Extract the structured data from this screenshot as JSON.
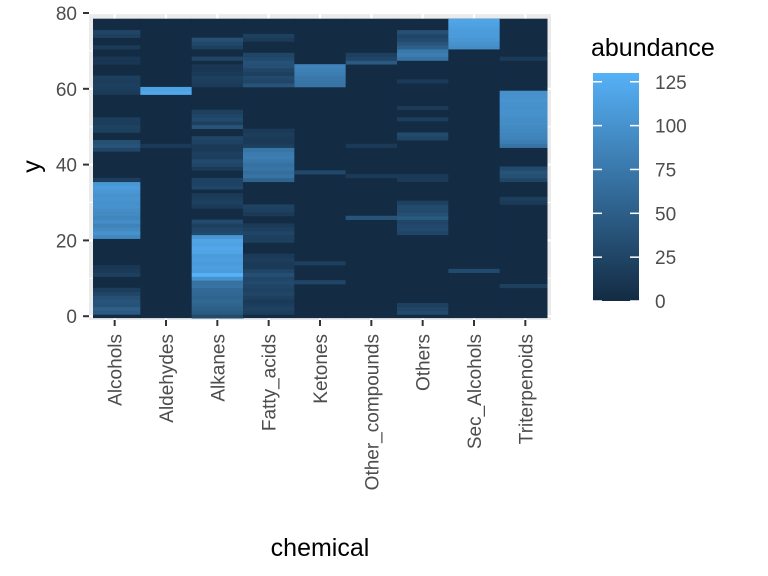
{
  "chart_data": {
    "type": "heatmap",
    "xlabel": "chemical",
    "ylabel": "y",
    "categories": [
      "Alcohols",
      "Aldehydes",
      "Alkanes",
      "Fatty_acids",
      "Ketones",
      "Other_compounds",
      "Others",
      "Sec_Alcohols",
      "Triterpenoids"
    ],
    "y_ticks": [
      0,
      20,
      40,
      60,
      80
    ],
    "ylim": [
      -1,
      80
    ],
    "legend": {
      "title": "abundance",
      "position": "right",
      "ticks": [
        0,
        25,
        50,
        75,
        100,
        125
      ],
      "range": [
        0,
        130
      ],
      "color_low": "#132B43",
      "color_high": "#56B1F7"
    },
    "panel_background": "#EBEBEB",
    "grid": true,
    "cells": {
      "Alcohols": [
        [
          1,
          45
        ],
        [
          2,
          50
        ],
        [
          3,
          38
        ],
        [
          4,
          40
        ],
        [
          5,
          35
        ],
        [
          6,
          25
        ],
        [
          7,
          18
        ],
        [
          11,
          20
        ],
        [
          12,
          15
        ],
        [
          13,
          12
        ],
        [
          21,
          90
        ],
        [
          22,
          100
        ],
        [
          23,
          92
        ],
        [
          24,
          85
        ],
        [
          25,
          95
        ],
        [
          26,
          88
        ],
        [
          27,
          92
        ],
        [
          28,
          95
        ],
        [
          29,
          100
        ],
        [
          30,
          98
        ],
        [
          31,
          102
        ],
        [
          32,
          100
        ],
        [
          33,
          105
        ],
        [
          34,
          110
        ],
        [
          35,
          105
        ],
        [
          36,
          18
        ],
        [
          44,
          25
        ],
        [
          45,
          40
        ],
        [
          46,
          35
        ],
        [
          49,
          20
        ],
        [
          50,
          22
        ],
        [
          51,
          18
        ],
        [
          52,
          18
        ],
        [
          59,
          15
        ],
        [
          60,
          18
        ],
        [
          61,
          20
        ],
        [
          62,
          18
        ],
        [
          63,
          20
        ],
        [
          67,
          12
        ],
        [
          68,
          12
        ],
        [
          71,
          15
        ],
        [
          74,
          20
        ],
        [
          75,
          25
        ]
      ],
      "Aldehydes": [
        [
          45,
          15
        ],
        [
          59,
          120
        ],
        [
          60,
          115
        ]
      ],
      "Alkanes": [
        [
          0,
          30
        ],
        [
          1,
          45
        ],
        [
          2,
          50
        ],
        [
          3,
          55
        ],
        [
          4,
          58
        ],
        [
          5,
          55
        ],
        [
          6,
          58
        ],
        [
          7,
          60
        ],
        [
          8,
          70
        ],
        [
          9,
          68
        ],
        [
          10,
          100
        ],
        [
          11,
          130
        ],
        [
          12,
          110
        ],
        [
          13,
          112
        ],
        [
          14,
          108
        ],
        [
          15,
          112
        ],
        [
          16,
          110
        ],
        [
          17,
          118
        ],
        [
          18,
          120
        ],
        [
          19,
          115
        ],
        [
          20,
          118
        ],
        [
          21,
          105
        ],
        [
          22,
          30
        ],
        [
          23,
          25
        ],
        [
          24,
          20
        ],
        [
          25,
          30
        ],
        [
          29,
          15
        ],
        [
          30,
          20
        ],
        [
          31,
          18
        ],
        [
          32,
          15
        ],
        [
          34,
          25
        ],
        [
          35,
          22
        ],
        [
          36,
          22
        ],
        [
          39,
          15
        ],
        [
          40,
          25
        ],
        [
          41,
          30
        ],
        [
          42,
          18
        ],
        [
          43,
          20
        ],
        [
          44,
          15
        ],
        [
          45,
          15
        ],
        [
          46,
          22
        ],
        [
          47,
          25
        ],
        [
          50,
          40
        ],
        [
          51,
          20
        ],
        [
          52,
          30
        ],
        [
          53,
          25
        ],
        [
          54,
          20
        ],
        [
          61,
          15
        ],
        [
          62,
          18
        ],
        [
          63,
          20
        ],
        [
          64,
          15
        ],
        [
          65,
          12
        ],
        [
          66,
          12
        ],
        [
          68,
          25
        ],
        [
          71,
          20
        ],
        [
          72,
          28
        ],
        [
          73,
          35
        ]
      ],
      "Fatty_acids": [
        [
          1,
          18
        ],
        [
          2,
          22
        ],
        [
          3,
          18
        ],
        [
          4,
          15
        ],
        [
          5,
          20
        ],
        [
          6,
          25
        ],
        [
          7,
          22
        ],
        [
          8,
          25
        ],
        [
          9,
          30
        ],
        [
          10,
          25
        ],
        [
          11,
          35
        ],
        [
          12,
          25
        ],
        [
          13,
          15
        ],
        [
          14,
          15
        ],
        [
          15,
          18
        ],
        [
          16,
          15
        ],
        [
          20,
          20
        ],
        [
          21,
          20
        ],
        [
          22,
          25
        ],
        [
          23,
          20
        ],
        [
          24,
          15
        ],
        [
          27,
          15
        ],
        [
          28,
          20
        ],
        [
          29,
          22
        ],
        [
          36,
          55
        ],
        [
          37,
          70
        ],
        [
          38,
          65
        ],
        [
          39,
          72
        ],
        [
          40,
          68
        ],
        [
          41,
          75
        ],
        [
          42,
          80
        ],
        [
          43,
          78
        ],
        [
          44,
          72
        ],
        [
          45,
          20
        ],
        [
          46,
          15
        ],
        [
          47,
          15
        ],
        [
          48,
          18
        ],
        [
          49,
          15
        ],
        [
          61,
          40
        ],
        [
          62,
          25
        ],
        [
          63,
          30
        ],
        [
          64,
          20
        ],
        [
          65,
          25
        ],
        [
          66,
          35
        ],
        [
          67,
          38
        ],
        [
          68,
          30
        ],
        [
          69,
          25
        ],
        [
          73,
          15
        ],
        [
          74,
          20
        ]
      ],
      "Ketones": [
        [
          9,
          25
        ],
        [
          14,
          20
        ],
        [
          38,
          28
        ],
        [
          61,
          70
        ],
        [
          62,
          72
        ],
        [
          63,
          75
        ],
        [
          64,
          80
        ],
        [
          65,
          82
        ],
        [
          66,
          85
        ]
      ],
      "Other_compounds": [
        [
          26,
          40
        ],
        [
          37,
          15
        ],
        [
          45,
          15
        ],
        [
          67,
          45
        ],
        [
          68,
          25
        ],
        [
          69,
          20
        ]
      ],
      "Others": [
        [
          1,
          30
        ],
        [
          2,
          25
        ],
        [
          3,
          20
        ],
        [
          22,
          25
        ],
        [
          23,
          30
        ],
        [
          24,
          28
        ],
        [
          25,
          25
        ],
        [
          26,
          45
        ],
        [
          27,
          35
        ],
        [
          28,
          30
        ],
        [
          29,
          30
        ],
        [
          30,
          20
        ],
        [
          36,
          15
        ],
        [
          37,
          15
        ],
        [
          47,
          25
        ],
        [
          48,
          30
        ],
        [
          52,
          18
        ],
        [
          55,
          15
        ],
        [
          62,
          15
        ],
        [
          68,
          70
        ],
        [
          69,
          80
        ],
        [
          70,
          75
        ],
        [
          71,
          50
        ],
        [
          72,
          40
        ],
        [
          73,
          30
        ],
        [
          74,
          25
        ],
        [
          75,
          35
        ]
      ],
      "Sec_Alcohols": [
        [
          12,
          30
        ],
        [
          71,
          95
        ],
        [
          72,
          100
        ],
        [
          73,
          105
        ],
        [
          74,
          108
        ],
        [
          75,
          110
        ],
        [
          76,
          112
        ],
        [
          77,
          115
        ],
        [
          78,
          118
        ]
      ],
      "Triterpenoids": [
        [
          8,
          20
        ],
        [
          30,
          15
        ],
        [
          31,
          18
        ],
        [
          36,
          25
        ],
        [
          37,
          35
        ],
        [
          38,
          40
        ],
        [
          39,
          30
        ],
        [
          45,
          70
        ],
        [
          46,
          80
        ],
        [
          47,
          85
        ],
        [
          48,
          88
        ],
        [
          49,
          90
        ],
        [
          50,
          92
        ],
        [
          51,
          95
        ],
        [
          52,
          95
        ],
        [
          53,
          98
        ],
        [
          54,
          100
        ],
        [
          55,
          98
        ],
        [
          56,
          100
        ],
        [
          57,
          102
        ],
        [
          58,
          100
        ],
        [
          59,
          98
        ],
        [
          68,
          15
        ]
      ]
    }
  }
}
